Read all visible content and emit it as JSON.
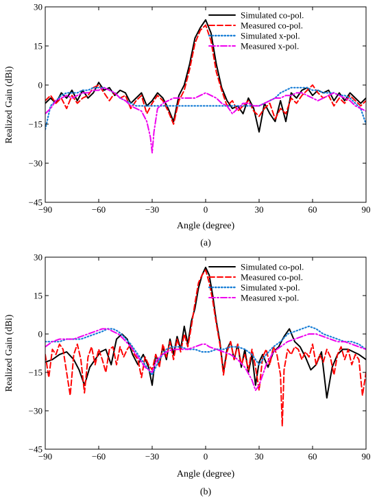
{
  "chart_data": [
    {
      "panel": "(a)",
      "type": "line",
      "title": "",
      "xlabel": "Angle (degree)",
      "ylabel": "Realized Gain (dBi)",
      "xlim": [
        -90,
        90
      ],
      "ylim": [
        -45,
        30
      ],
      "xticks": [
        -90,
        -60,
        -30,
        0,
        30,
        60,
        90
      ],
      "yticks": [
        30,
        15,
        0,
        -15,
        -30,
        -45
      ],
      "grid": false,
      "legend_position": "top-right",
      "series": [
        {
          "name": "Simulated co-pol.",
          "color": "#000000",
          "style": "solid",
          "x": [
            -90,
            -87,
            -84,
            -81,
            -78,
            -75,
            -72,
            -69,
            -66,
            -63,
            -60,
            -57,
            -54,
            -51,
            -48,
            -45,
            -42,
            -39,
            -36,
            -33,
            -30,
            -27,
            -24,
            -21,
            -18,
            -15,
            -12,
            -9,
            -6,
            -3,
            0,
            3,
            6,
            9,
            12,
            15,
            18,
            21,
            24,
            27,
            30,
            33,
            36,
            39,
            42,
            45,
            48,
            51,
            54,
            57,
            60,
            63,
            66,
            69,
            72,
            75,
            78,
            81,
            84,
            87,
            90
          ],
          "y": [
            -7,
            -5,
            -7,
            -3,
            -5,
            -2,
            -6,
            -2,
            -5,
            -3,
            1,
            -2,
            -1,
            -4,
            -2,
            -3,
            -7,
            -5,
            -3,
            -8,
            -6,
            -3,
            -5,
            -9,
            -14,
            -4,
            0,
            8,
            18,
            22,
            25,
            20,
            8,
            -1,
            -6,
            -9,
            -8,
            -11,
            -5,
            -9,
            -18,
            -7,
            -11,
            -14,
            -6,
            -14,
            -3,
            -5,
            -2,
            -1,
            -4,
            -2,
            -3,
            -2,
            -6,
            -3,
            -6,
            -3,
            -5,
            -7,
            -5
          ]
        },
        {
          "name": "Measured co-pol.",
          "color": "#ff0000",
          "style": "dashed",
          "x": [
            -90,
            -87,
            -84,
            -81,
            -78,
            -75,
            -72,
            -69,
            -66,
            -63,
            -60,
            -57,
            -54,
            -51,
            -48,
            -45,
            -42,
            -39,
            -36,
            -33,
            -30,
            -27,
            -24,
            -21,
            -18,
            -15,
            -12,
            -9,
            -6,
            -3,
            0,
            3,
            6,
            9,
            12,
            15,
            18,
            21,
            24,
            27,
            30,
            33,
            36,
            39,
            42,
            45,
            48,
            51,
            54,
            57,
            60,
            63,
            66,
            69,
            72,
            75,
            78,
            81,
            84,
            87,
            90
          ],
          "y": [
            -6,
            -4,
            -7,
            -5,
            -9,
            -4,
            -7,
            -5,
            -4,
            -1,
            0,
            -3,
            -6,
            -3,
            -5,
            -4,
            -9,
            -6,
            -4,
            -11,
            -7,
            -4,
            -6,
            -10,
            -15,
            -6,
            -2,
            6,
            16,
            21,
            23,
            17,
            5,
            -2,
            -8,
            -6,
            -10,
            -8,
            -6,
            -10,
            -12,
            -9,
            -7,
            -13,
            -9,
            -11,
            -5,
            -7,
            -4,
            -2,
            0,
            -3,
            -5,
            -4,
            -8,
            -5,
            -7,
            -4,
            -6,
            -8,
            -6
          ]
        },
        {
          "name": "Simulated x-pol.",
          "color": "#1a7fd6",
          "style": "dotted",
          "x": [
            -90,
            -87,
            -84,
            -81,
            -78,
            -75,
            -72,
            -69,
            -66,
            -63,
            -60,
            -57,
            -54,
            -51,
            -48,
            -45,
            -42,
            -39,
            -36,
            -33,
            -30,
            -27,
            -24,
            -21,
            -18,
            -15,
            -12,
            -9,
            -6,
            -3,
            0,
            3,
            6,
            9,
            12,
            15,
            18,
            21,
            24,
            27,
            30,
            33,
            36,
            39,
            42,
            45,
            48,
            51,
            54,
            57,
            60,
            63,
            66,
            69,
            72,
            75,
            78,
            81,
            84,
            87,
            90
          ],
          "y": [
            -17,
            -8,
            -6,
            -4,
            -3,
            -3,
            -3,
            -2,
            -2,
            -1,
            -1,
            -1,
            -2,
            -3,
            -5,
            -6,
            -7,
            -8,
            -8,
            -8,
            -8,
            -8,
            -8,
            -8,
            -8,
            -8,
            -8,
            -8,
            -8,
            -8,
            -8,
            -8,
            -8,
            -8,
            -8,
            -8,
            -8,
            -8,
            -8,
            -8,
            -8,
            -7,
            -6,
            -5,
            -3,
            -2,
            -1,
            -1,
            -1,
            -1,
            -2,
            -2,
            -3,
            -3,
            -3,
            -4,
            -4,
            -5,
            -7,
            -9,
            -15
          ]
        },
        {
          "name": "Measured x-pol.",
          "color": "#ee00ee",
          "style": "dash-dot",
          "x": [
            -90,
            -87,
            -84,
            -81,
            -78,
            -75,
            -72,
            -69,
            -66,
            -63,
            -60,
            -57,
            -54,
            -51,
            -48,
            -45,
            -42,
            -39,
            -36,
            -33,
            -31,
            -30,
            -29,
            -27,
            -24,
            -21,
            -18,
            -15,
            -12,
            -9,
            -6,
            -3,
            0,
            3,
            6,
            9,
            12,
            15,
            18,
            21,
            24,
            27,
            30,
            33,
            36,
            39,
            42,
            45,
            48,
            51,
            54,
            57,
            60,
            63,
            66,
            69,
            72,
            75,
            78,
            81,
            84,
            87,
            90
          ],
          "y": [
            -11,
            -9,
            -6,
            -5,
            -4,
            -5,
            -4,
            -3,
            -3,
            -2,
            -2,
            -1,
            -2,
            -3,
            -5,
            -6,
            -8,
            -9,
            -10,
            -14,
            -20,
            -26,
            -18,
            -9,
            -7,
            -6,
            -5,
            -5,
            -5,
            -5,
            -5,
            -4,
            -3,
            -4,
            -5,
            -7,
            -8,
            -11,
            -9,
            -7,
            -7,
            -8,
            -8,
            -7,
            -6,
            -5,
            -5,
            -4,
            -4,
            -3,
            -3,
            -4,
            -5,
            -6,
            -5,
            -4,
            -3,
            -4,
            -5,
            -6,
            -8,
            -9,
            -10
          ]
        }
      ]
    },
    {
      "panel": "(b)",
      "type": "line",
      "title": "",
      "xlabel": "Angle (degree)",
      "ylabel": "Realized Gain (dBi)",
      "xlim": [
        -90,
        90
      ],
      "ylim": [
        -45,
        30
      ],
      "xticks": [
        -90,
        -60,
        -30,
        0,
        30,
        60,
        90
      ],
      "yticks": [
        30,
        15,
        0,
        -15,
        -30,
        -45
      ],
      "grid": false,
      "legend_position": "top-right",
      "series": [
        {
          "name": "Simulated co-pol.",
          "color": "#000000",
          "style": "solid",
          "x": [
            -90,
            -86,
            -82,
            -78,
            -74,
            -71,
            -68,
            -65,
            -62,
            -59,
            -56,
            -53,
            -50,
            -47,
            -44,
            -41,
            -38,
            -35,
            -32,
            -30,
            -28,
            -26,
            -24,
            -22,
            -20,
            -18,
            -16,
            -14,
            -12,
            -10,
            -8,
            -6,
            -4,
            -2,
            0,
            2,
            4,
            6,
            8,
            10,
            12,
            14,
            16,
            18,
            20,
            22,
            24,
            26,
            28,
            30,
            32,
            35,
            38,
            41,
            44,
            47,
            50,
            53,
            56,
            59,
            62,
            65,
            68,
            71,
            74,
            77,
            80,
            83,
            86,
            90
          ],
          "y": [
            -11,
            -10,
            -8,
            -7,
            -10,
            -14,
            -20,
            -13,
            -10,
            -7,
            -6,
            -12,
            -2,
            0,
            -2,
            -8,
            -12,
            -8,
            -13,
            -20,
            -8,
            -12,
            -5,
            -10,
            -2,
            -8,
            -1,
            -6,
            3,
            -4,
            5,
            10,
            18,
            23,
            26,
            23,
            15,
            5,
            -3,
            -15,
            -6,
            -3,
            -10,
            -4,
            -13,
            -6,
            -15,
            -8,
            -20,
            -11,
            -8,
            -13,
            -7,
            -5,
            -1,
            2,
            -3,
            -5,
            -9,
            -14,
            -12,
            -7,
            -25,
            -13,
            -8,
            -6,
            -6,
            -7,
            -8,
            -10
          ]
        },
        {
          "name": "Measured co-pol.",
          "color": "#ff0000",
          "style": "dashed",
          "x": [
            -90,
            -88,
            -86,
            -84,
            -82,
            -80,
            -78,
            -76,
            -74,
            -72,
            -70,
            -68,
            -66,
            -64,
            -62,
            -60,
            -58,
            -56,
            -54,
            -52,
            -50,
            -48,
            -46,
            -44,
            -42,
            -40,
            -38,
            -36,
            -34,
            -32,
            -30,
            -28,
            -26,
            -24,
            -22,
            -20,
            -18,
            -16,
            -14,
            -12,
            -10,
            -8,
            -6,
            -4,
            -2,
            0,
            2,
            4,
            6,
            8,
            10,
            12,
            14,
            16,
            18,
            20,
            22,
            24,
            26,
            28,
            30,
            32,
            34,
            36,
            38,
            40,
            42,
            43,
            44,
            46,
            48,
            50,
            52,
            54,
            56,
            58,
            60,
            62,
            64,
            66,
            68,
            70,
            72,
            74,
            76,
            78,
            80,
            82,
            84,
            86,
            88,
            90
          ],
          "y": [
            -8,
            -17,
            -6,
            -8,
            -4,
            -6,
            -15,
            -24,
            -8,
            -4,
            -10,
            -23,
            -9,
            -5,
            -12,
            -6,
            -10,
            -15,
            -6,
            -5,
            -12,
            -5,
            -9,
            -6,
            -4,
            -8,
            -10,
            -17,
            -9,
            -12,
            -14,
            -8,
            -13,
            -4,
            -9,
            -3,
            -10,
            -2,
            -7,
            0,
            -5,
            3,
            12,
            20,
            23,
            25,
            20,
            13,
            4,
            -4,
            -16,
            -7,
            -3,
            -10,
            -4,
            -12,
            -8,
            -14,
            -6,
            -13,
            -22,
            -9,
            -6,
            -12,
            -5,
            -8,
            -16,
            -36,
            -14,
            -6,
            -8,
            -5,
            -6,
            -10,
            -7,
            -9,
            -4,
            -12,
            -8,
            -11,
            -6,
            -9,
            -16,
            -8,
            -5,
            -10,
            -6,
            -12,
            -8,
            -10,
            -24,
            -15
          ]
        },
        {
          "name": "Simulated x-pol.",
          "color": "#1a7fd6",
          "style": "dotted",
          "x": [
            -90,
            -86,
            -82,
            -78,
            -74,
            -70,
            -66,
            -62,
            -58,
            -55,
            -52,
            -49,
            -46,
            -42,
            -38,
            -34,
            -30,
            -26,
            -22,
            -18,
            -14,
            -10,
            -6,
            -2,
            0,
            2,
            6,
            10,
            14,
            18,
            22,
            26,
            30,
            34,
            38,
            42,
            46,
            50,
            54,
            58,
            62,
            66,
            70,
            74,
            78,
            82,
            86,
            90
          ],
          "y": [
            -3,
            -3,
            -3,
            -2,
            -2,
            -2,
            -1,
            0,
            1,
            2,
            2,
            1,
            -1,
            -4,
            -8,
            -12,
            -16,
            -10,
            -6,
            -5,
            -5,
            -6,
            -6,
            -7,
            -7,
            -7,
            -6,
            -6,
            -5,
            -5,
            -6,
            -8,
            -12,
            -8,
            -5,
            -3,
            0,
            1,
            2,
            3,
            2,
            0,
            -1,
            -2,
            -3,
            -3,
            -4,
            -6
          ]
        },
        {
          "name": "Measured x-pol.",
          "color": "#ee00ee",
          "style": "dash-dot",
          "x": [
            -90,
            -86,
            -82,
            -78,
            -74,
            -70,
            -66,
            -62,
            -58,
            -55,
            -52,
            -49,
            -46,
            -42,
            -38,
            -34,
            -30,
            -28,
            -26,
            -22,
            -18,
            -14,
            -10,
            -6,
            -2,
            0,
            2,
            6,
            10,
            14,
            18,
            22,
            26,
            28,
            30,
            34,
            38,
            42,
            46,
            50,
            54,
            58,
            62,
            66,
            70,
            74,
            78,
            82,
            86,
            90
          ],
          "y": [
            -5,
            -3,
            -2,
            -2,
            -2,
            -1,
            0,
            1,
            2,
            2,
            1,
            0,
            -2,
            -5,
            -9,
            -13,
            -15,
            -11,
            -9,
            -7,
            -6,
            -6,
            -6,
            -5,
            -4,
            -4,
            -5,
            -6,
            -7,
            -8,
            -10,
            -13,
            -18,
            -22,
            -20,
            -12,
            -7,
            -5,
            -3,
            -2,
            -1,
            0,
            0,
            -1,
            -2,
            -3,
            -3,
            -4,
            -5,
            -6
          ]
        }
      ]
    }
  ]
}
